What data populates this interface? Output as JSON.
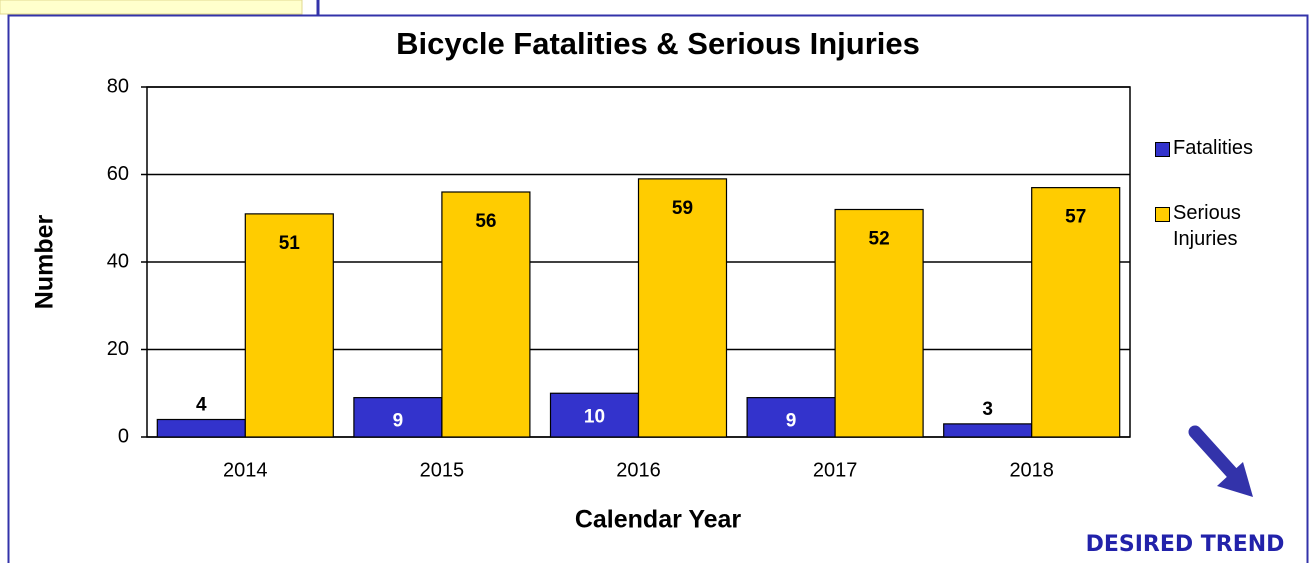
{
  "chart_data": {
    "type": "bar",
    "title": "Bicycle Fatalities & Serious Injuries",
    "x_label": "Calendar Year",
    "y_label": "Number",
    "categories": [
      "2014",
      "2015",
      "2016",
      "2017",
      "2018"
    ],
    "series": [
      {
        "name": "Fatalities",
        "color": "#3333cc",
        "values": [
          4,
          9,
          10,
          9,
          3
        ]
      },
      {
        "name": "Serious Injuries",
        "color": "#ffcc00",
        "values": [
          51,
          56,
          59,
          52,
          57
        ]
      }
    ],
    "ylim": [
      0,
      80
    ],
    "yticks": [
      0,
      20,
      40,
      60,
      80
    ],
    "grid": true,
    "legend": "right",
    "annotation": "DESIRED TREND"
  }
}
